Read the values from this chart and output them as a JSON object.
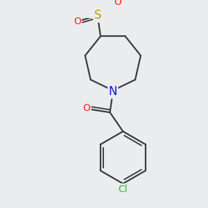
{
  "bg_color": "#eaeced",
  "bond_color": "#3a3a3a",
  "bond_width": 1.6,
  "atom_colors": {
    "S": "#b8a000",
    "O": "#ff2020",
    "N": "#1010ee",
    "Cl": "#33bb33",
    "C": "#3a3a3a"
  },
  "layout": {
    "xlim": [
      0.0,
      3.0
    ],
    "ylim": [
      0.0,
      3.2
    ]
  }
}
